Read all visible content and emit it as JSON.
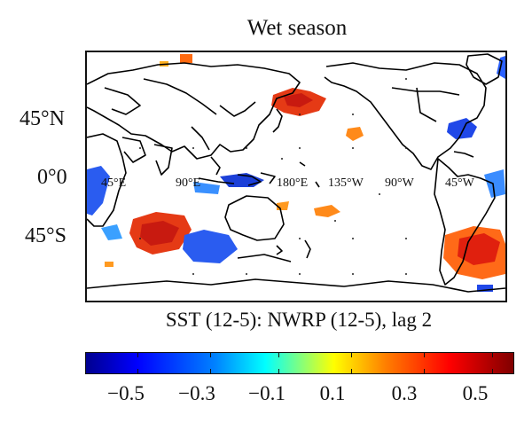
{
  "figure": {
    "title": "Wet season",
    "subtitle": "SST (12-5): NWRP (12-5), lag 2"
  },
  "map": {
    "latitude_labels": [
      "45°N",
      "0°0",
      "45°S"
    ],
    "longitude_labels": [
      "45°E",
      "90°E",
      "180°E",
      "135°W",
      "90°W",
      "45°W"
    ],
    "colors": {
      "land_outline": "#000000",
      "positive_strong": "#e02010",
      "positive_weak": "#ff9a20",
      "negative_strong": "#1a40e0",
      "negative_weak": "#3aa0ff"
    }
  },
  "colorbar": {
    "tick_labels": [
      "−0.5",
      "−0.3",
      "−0.1",
      "0.1",
      "0.3",
      "0.5"
    ],
    "range": [
      -0.6,
      0.6
    ],
    "colormap": "jet"
  }
}
